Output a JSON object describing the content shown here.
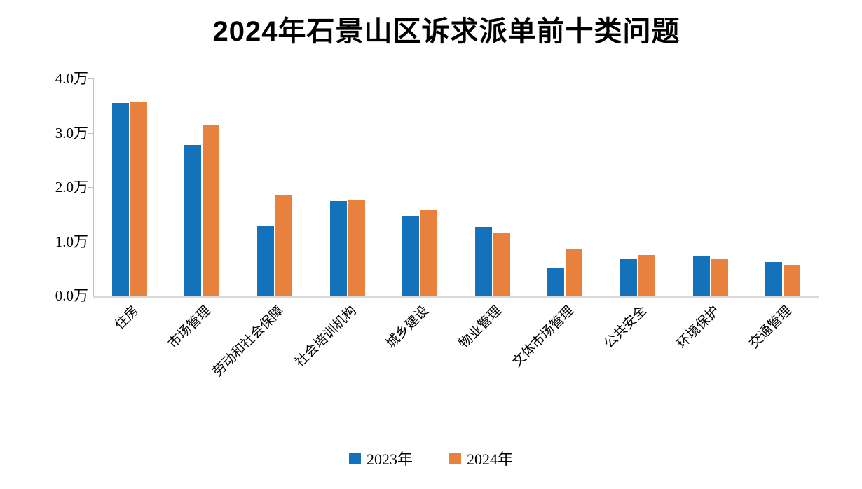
{
  "chart_data": {
    "type": "bar",
    "title": "2024年石景山区诉求派单前十类问题",
    "unit": "万",
    "categories": [
      "住房",
      "市场管理",
      "劳动和社会保障",
      "社会培训机构",
      "城乡建设",
      "物业管理",
      "文体市场管理",
      "公共安全",
      "环境保护",
      "交通管理"
    ],
    "series": [
      {
        "name": "2023年",
        "color": "#1472bb",
        "values": [
          3.55,
          2.78,
          1.28,
          1.74,
          1.46,
          1.27,
          0.51,
          0.68,
          0.72,
          0.62
        ]
      },
      {
        "name": "2024年",
        "color": "#e8813e",
        "values": [
          3.57,
          3.13,
          1.84,
          1.77,
          1.57,
          1.16,
          0.86,
          0.75,
          0.69,
          0.57
        ]
      }
    ],
    "ylim": [
      0,
      4
    ],
    "y_ticks": [
      {
        "value": 0,
        "label": "0.0万"
      },
      {
        "value": 1,
        "label": "1.0万"
      },
      {
        "value": 2,
        "label": "2.0万"
      },
      {
        "value": 3,
        "label": "3.0万"
      },
      {
        "value": 4,
        "label": "4.0万"
      }
    ],
    "grid": false,
    "legend_position": "bottom",
    "colors": {
      "axis_line": "#bfbfbf",
      "baseline": "#d9d9d9",
      "text": "#000000"
    }
  }
}
